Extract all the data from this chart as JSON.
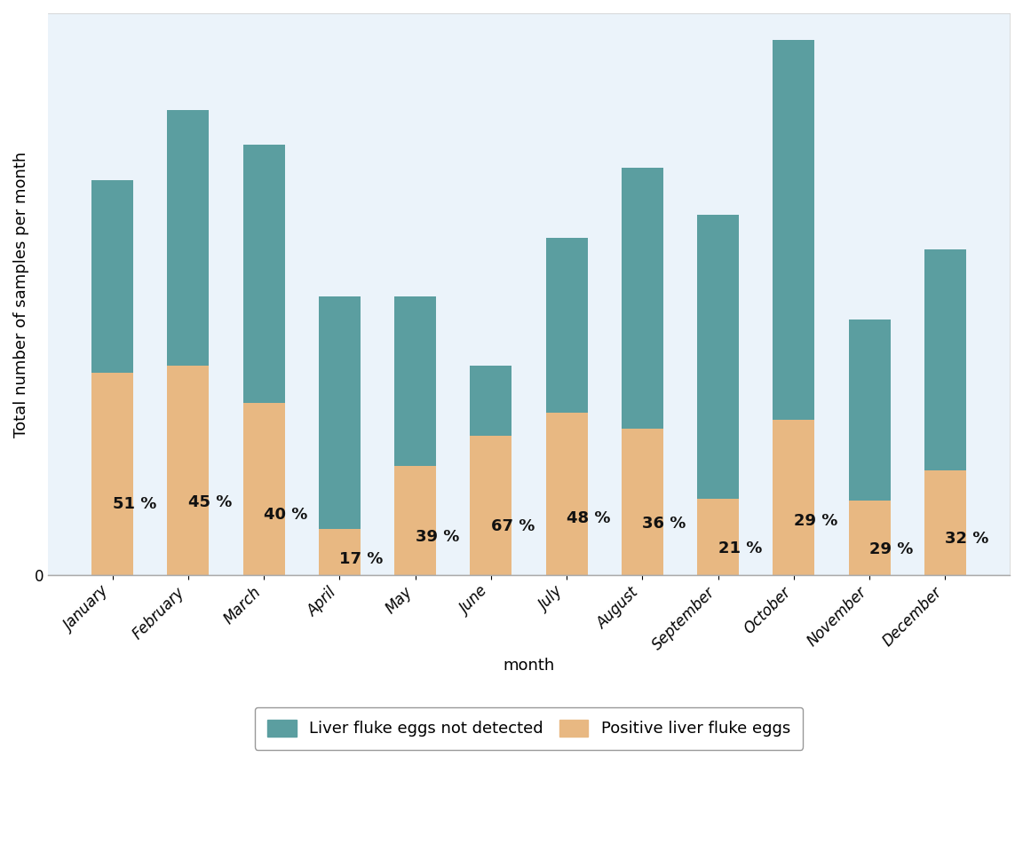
{
  "months": [
    "January",
    "February",
    "March",
    "April",
    "May",
    "June",
    "July",
    "August",
    "September",
    "October",
    "November",
    "December"
  ],
  "positive": [
    87,
    90,
    74,
    20,
    47,
    60,
    70,
    63,
    33,
    67,
    32,
    45
  ],
  "negative": [
    83,
    110,
    111,
    100,
    73,
    30,
    75,
    112,
    122,
    163,
    78,
    95
  ],
  "percentages": [
    "51 %",
    "45 %",
    "40 %",
    "17 %",
    "39 %",
    "67 %",
    "48 %",
    "36 %",
    "21 %",
    "29 %",
    "29 %",
    "32 %"
  ],
  "positive_color": "#E8B882",
  "negative_color": "#5B9EA0",
  "background_color": "#EBF3FA",
  "ylabel": "Total number of samples per month",
  "xlabel": "month",
  "legend_negative": "Liver fluke eggs not detected",
  "legend_positive": "Positive liver fluke eggs",
  "label_fontsize": 13,
  "tick_fontsize": 12,
  "legend_fontsize": 13,
  "pct_fontsize": 13,
  "bar_width": 0.55
}
